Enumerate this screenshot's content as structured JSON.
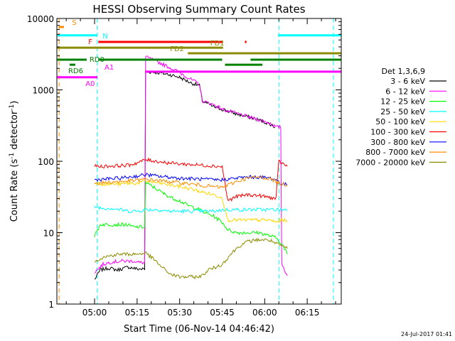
{
  "chart_data": {
    "type": "line",
    "title": "HESSI Observing Summary Count Rates",
    "xlabel": "Start Time (06-Nov-14 04:46:42)",
    "ylabel": "Count Rate (s-1 detector-1)",
    "ylabel_main": "Count Rate (s",
    "ylabel_exp1": "-1",
    "ylabel_mid": " detector",
    "ylabel_exp2": "-1",
    "ylabel_end": ")",
    "yscale": "log",
    "ylim": [
      1,
      10000
    ],
    "xlim_minutes": [
      286.7,
      387.0
    ],
    "x_ticks": [
      {
        "label": "05:00",
        "min": 300
      },
      {
        "label": "05:15",
        "min": 315
      },
      {
        "label": "05:30",
        "min": 330
      },
      {
        "label": "05:45",
        "min": 345
      },
      {
        "label": "06:00",
        "min": 360
      },
      {
        "label": "06:15",
        "min": 375
      }
    ],
    "y_ticks": [
      {
        "label": "1",
        "value": 1
      },
      {
        "label": "10",
        "value": 10
      },
      {
        "label": "100",
        "value": 100
      },
      {
        "label": "1000",
        "value": 1000
      },
      {
        "label": "10000",
        "value": 10000
      }
    ],
    "legend_title": "Det 1,3,6,9",
    "legend_position": "right",
    "series": [
      {
        "name": "3 - 6 keV",
        "color": "#000000",
        "points": [
          [
            300,
            2.2
          ],
          [
            302,
            3.0
          ],
          [
            305,
            3.2
          ],
          [
            308,
            3.0
          ],
          [
            312,
            3.3
          ],
          [
            315,
            3.1
          ],
          [
            318,
            1800
          ],
          [
            322,
            1750
          ],
          [
            326,
            1650
          ],
          [
            330,
            1500
          ],
          [
            334,
            1250
          ],
          [
            337,
            1150
          ],
          [
            338,
            700
          ],
          [
            342,
            580
          ],
          [
            346,
            520
          ],
          [
            350,
            460
          ],
          [
            354,
            420
          ],
          [
            358,
            380
          ],
          [
            362,
            330
          ],
          [
            363.6,
            300
          ]
        ]
      },
      {
        "name": "6 - 12 keV",
        "color": "#ff00ff",
        "points": [
          [
            300,
            2.8
          ],
          [
            303,
            3.6
          ],
          [
            306,
            3.9
          ],
          [
            310,
            4.0
          ],
          [
            314,
            4.0
          ],
          [
            316,
            3.8
          ],
          [
            318,
            2900
          ],
          [
            322,
            2500
          ],
          [
            326,
            2100
          ],
          [
            330,
            1750
          ],
          [
            334,
            1400
          ],
          [
            337,
            1200
          ],
          [
            338,
            700
          ],
          [
            342,
            620
          ],
          [
            346,
            520
          ],
          [
            350,
            470
          ],
          [
            354,
            420
          ],
          [
            358,
            380
          ],
          [
            362,
            340
          ],
          [
            364,
            300
          ],
          [
            366,
            3.7
          ],
          [
            368,
            2.5
          ]
        ]
      },
      {
        "name": "12 - 25 keV",
        "color": "#00ff00",
        "points": [
          [
            300,
            9
          ],
          [
            302,
            13
          ],
          [
            305,
            13
          ],
          [
            308,
            13
          ],
          [
            311,
            13
          ],
          [
            314,
            12
          ],
          [
            317,
            12
          ],
          [
            318,
            50
          ],
          [
            321,
            43
          ],
          [
            324,
            36
          ],
          [
            327,
            31
          ],
          [
            330,
            28
          ],
          [
            333,
            24
          ],
          [
            336,
            22
          ],
          [
            339,
            19
          ],
          [
            342,
            17
          ],
          [
            345,
            14
          ],
          [
            347,
            11
          ],
          [
            350,
            10
          ],
          [
            354,
            10
          ],
          [
            358,
            10
          ],
          [
            362,
            9
          ],
          [
            364,
            8.5
          ],
          [
            366,
            7
          ],
          [
            368,
            5
          ]
        ]
      },
      {
        "name": "25 - 50 keV",
        "color": "#00ffff",
        "points": [
          [
            300,
            23
          ],
          [
            303,
            22
          ],
          [
            306,
            22
          ],
          [
            309,
            21
          ],
          [
            312,
            20
          ],
          [
            315,
            20
          ],
          [
            318,
            21
          ],
          [
            322,
            21
          ],
          [
            326,
            20
          ],
          [
            330,
            20
          ],
          [
            334,
            20
          ],
          [
            338,
            20
          ],
          [
            342,
            20
          ],
          [
            346,
            21
          ],
          [
            350,
            21
          ],
          [
            354,
            21
          ],
          [
            358,
            21
          ],
          [
            362,
            21
          ],
          [
            365,
            21
          ],
          [
            368,
            21
          ]
        ]
      },
      {
        "name": "50 - 100 keV",
        "color": "#ffd700",
        "points": [
          [
            300,
            50
          ],
          [
            303,
            48
          ],
          [
            306,
            48
          ],
          [
            309,
            48
          ],
          [
            312,
            49
          ],
          [
            315,
            49
          ],
          [
            318,
            53
          ],
          [
            322,
            50
          ],
          [
            326,
            47
          ],
          [
            330,
            44
          ],
          [
            334,
            41
          ],
          [
            338,
            37
          ],
          [
            342,
            34
          ],
          [
            345,
            31
          ],
          [
            347,
            15
          ],
          [
            350,
            15
          ],
          [
            354,
            15
          ],
          [
            358,
            15
          ],
          [
            362,
            15
          ],
          [
            364,
            14
          ],
          [
            366,
            15
          ],
          [
            368,
            15
          ]
        ]
      },
      {
        "name": "100 - 300 keV",
        "color": "#ff0000",
        "points": [
          [
            300,
            85
          ],
          [
            303,
            85
          ],
          [
            306,
            86
          ],
          [
            309,
            87
          ],
          [
            312,
            88
          ],
          [
            315,
            95
          ],
          [
            318,
            105
          ],
          [
            322,
            100
          ],
          [
            326,
            95
          ],
          [
            330,
            92
          ],
          [
            334,
            90
          ],
          [
            338,
            88
          ],
          [
            342,
            86
          ],
          [
            345,
            84
          ],
          [
            347,
            28
          ],
          [
            350,
            32
          ],
          [
            354,
            34
          ],
          [
            358,
            33
          ],
          [
            362,
            31
          ],
          [
            364,
            30
          ],
          [
            365,
            100
          ],
          [
            368,
            85
          ]
        ]
      },
      {
        "name": "300 - 800 keV",
        "color": "#0000ff",
        "points": [
          [
            300,
            55
          ],
          [
            303,
            56
          ],
          [
            306,
            57
          ],
          [
            309,
            58
          ],
          [
            312,
            60
          ],
          [
            315,
            62
          ],
          [
            318,
            65
          ],
          [
            322,
            62
          ],
          [
            326,
            60
          ],
          [
            330,
            58
          ],
          [
            334,
            57
          ],
          [
            338,
            56
          ],
          [
            342,
            55
          ],
          [
            345,
            55
          ],
          [
            350,
            58
          ],
          [
            354,
            60
          ],
          [
            358,
            60
          ],
          [
            362,
            58
          ],
          [
            364,
            55
          ],
          [
            366,
            48
          ],
          [
            368,
            47
          ]
        ]
      },
      {
        "name": "800 - 7000 keV",
        "color": "#ff8c00",
        "points": [
          [
            300,
            50
          ],
          [
            303,
            50
          ],
          [
            306,
            51
          ],
          [
            309,
            52
          ],
          [
            312,
            53
          ],
          [
            315,
            54
          ],
          [
            318,
            56
          ],
          [
            322,
            54
          ],
          [
            326,
            52
          ],
          [
            330,
            50
          ],
          [
            334,
            48
          ],
          [
            338,
            46
          ],
          [
            342,
            44
          ],
          [
            345,
            43
          ],
          [
            350,
            52
          ],
          [
            354,
            58
          ],
          [
            358,
            60
          ],
          [
            362,
            57
          ],
          [
            364,
            52
          ],
          [
            366,
            48
          ],
          [
            368,
            47
          ]
        ]
      },
      {
        "name": "7000 - 20000 keV",
        "color": "#8b8b00",
        "points": [
          [
            300,
            4.0
          ],
          [
            303,
            4.5
          ],
          [
            306,
            4.8
          ],
          [
            309,
            5.0
          ],
          [
            312,
            5.0
          ],
          [
            315,
            5.0
          ],
          [
            318,
            5.2
          ],
          [
            321,
            4.2
          ],
          [
            324,
            3.2
          ],
          [
            327,
            2.6
          ],
          [
            330,
            2.4
          ],
          [
            333,
            2.4
          ],
          [
            336,
            2.4
          ],
          [
            338,
            2.5
          ],
          [
            340,
            3.0
          ],
          [
            342,
            3.2
          ],
          [
            345,
            3.6
          ],
          [
            348,
            5.0
          ],
          [
            351,
            6.5
          ],
          [
            354,
            7.5
          ],
          [
            358,
            8.0
          ],
          [
            362,
            7.8
          ],
          [
            364,
            7.0
          ],
          [
            366,
            6.5
          ],
          [
            368,
            6.0
          ]
        ]
      }
    ],
    "annotations": [
      {
        "label": "S",
        "color": "#ff8c00",
        "segments": [
          [
            287.5,
            289.2
          ]
        ],
        "y": 7600
      },
      {
        "label": "N",
        "color": "#00ffff",
        "segments": [
          [
            286.7,
            300.9
          ],
          [
            364.7,
            387.0
          ]
        ],
        "y": 5800
      },
      {
        "label": "F",
        "color": "#ff0000",
        "segments": [
          [
            301.3,
            345.3
          ],
          [
            353.0,
            353.6
          ]
        ],
        "y": 4700
      },
      {
        "label": "FD1",
        "color": "#8b8b00",
        "segments": [
          [
            286.7,
            345.3
          ]
        ],
        "y": 3900
      },
      {
        "label": "FD2",
        "color": "#8b8b00",
        "segments": [
          [
            332.9,
            387.0
          ]
        ],
        "y": 3250
      },
      {
        "label": "RD0",
        "color": "#008000",
        "segments": [
          [
            286.7,
            297.2
          ],
          [
            301.3,
            345.0
          ],
          [
            355.0,
            387.0
          ]
        ],
        "y": 2650
      },
      {
        "label": "RD6",
        "color": "#008000",
        "segments": [
          [
            291.2,
            293.2
          ],
          [
            346.0,
            359.2
          ]
        ],
        "y": 2250
      },
      {
        "label": "A0",
        "color": "#ff00ff",
        "segments": [
          [
            286.7,
            301.0
          ]
        ],
        "y": 1500
      },
      {
        "label": "A1",
        "color": "#ff00ff",
        "segments": [
          [
            318.0,
            387.0
          ]
        ],
        "y": 1800
      }
    ],
    "vertical_markers": [
      {
        "min": 287.5,
        "color": "#ff8c00"
      },
      {
        "min": 300.9,
        "color": "#00ffff"
      },
      {
        "min": 365.0,
        "color": "#00ffff"
      },
      {
        "min": 384.2,
        "color": "#00ffff"
      }
    ]
  },
  "footer": {
    "date": "24-Jul-2017 01:41"
  }
}
